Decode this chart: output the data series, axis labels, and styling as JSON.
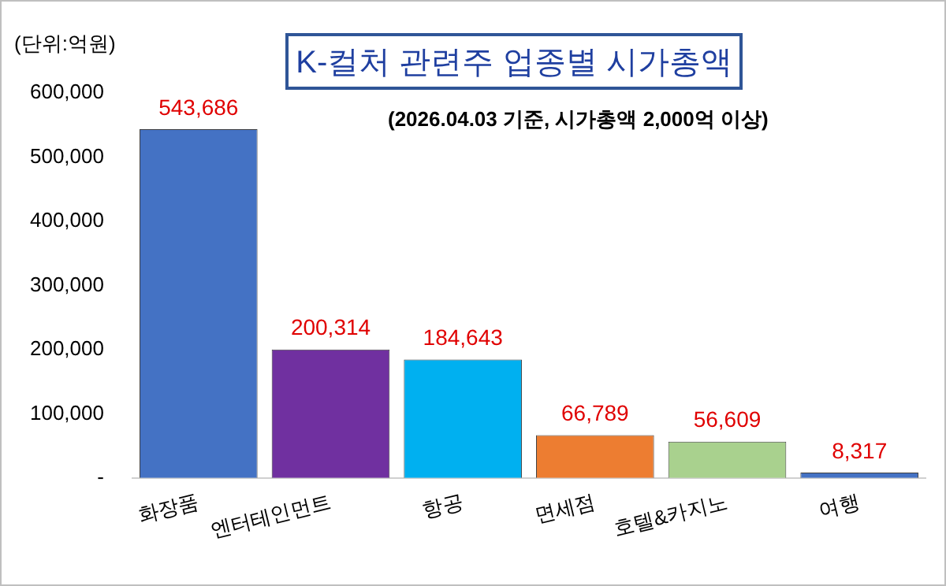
{
  "chart_data": {
    "type": "bar",
    "title": "K-컬처 관련주 업종별 시가총액",
    "subtitle": "(2026.04.03 기준, 시가총액 2,000억 이상)",
    "ylabel": "(단위:억원)",
    "categories": [
      "화장품",
      "엔터테인먼트",
      "항공",
      "면세점",
      "호텔&카지노",
      "여행"
    ],
    "values": [
      543686,
      200314,
      184643,
      66789,
      56609,
      8317
    ],
    "colors": [
      "#4472c4",
      "#7030a0",
      "#00b0f0",
      "#ed7d31",
      "#a9d18e",
      "#4472c4"
    ],
    "value_labels": [
      "543,686",
      "200,314",
      "184,643",
      "66,789",
      "56,609",
      "8,317"
    ],
    "ylim": [
      0,
      600000
    ],
    "yticks": [
      {
        "value": 0,
        "label": "-"
      },
      {
        "value": 100000,
        "label": "100,000"
      },
      {
        "value": 200000,
        "label": "200,000"
      },
      {
        "value": 300000,
        "label": "300,000"
      },
      {
        "value": 400000,
        "label": "400,000"
      },
      {
        "value": 500000,
        "label": "500,000"
      },
      {
        "value": 600000,
        "label": "600,000"
      }
    ],
    "grid": false,
    "legend": false
  }
}
